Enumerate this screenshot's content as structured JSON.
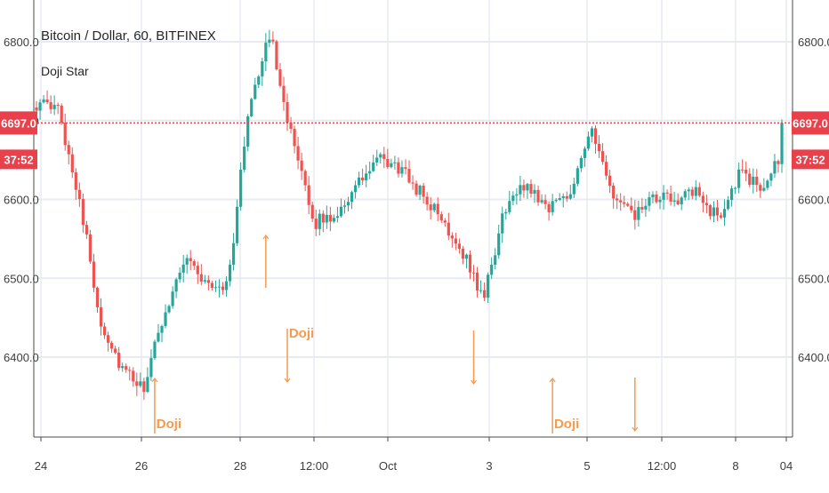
{
  "legend": {
    "title": "Bitcoin / Dollar, 60, BITFINEX",
    "indicator": "Doji Star"
  },
  "price_tag": {
    "value": "6697.0",
    "countdown": "37:52"
  },
  "colors": {
    "up": "#26a69a",
    "down": "#ef5350",
    "doji": "#f59a4e",
    "grid": "#e7ebf0",
    "axis": "#4a4a4a",
    "tag": "#e8414b"
  },
  "chart_data": {
    "type": "candlestick",
    "title": "Bitcoin / Dollar, 60, BITFINEX",
    "indicator": "Doji Star",
    "ylim": [
      6320,
      6840
    ],
    "y_ticks": [
      "6400.0",
      "6500.0",
      "6600.0",
      "6700.0",
      "6800.0"
    ],
    "x_ticks": [
      "24",
      "26",
      "28",
      "12:00",
      "Oct",
      "3",
      "5",
      "12:00",
      "8",
      "04"
    ],
    "last_price": 6697.0,
    "grid": "on",
    "legend": "top-left",
    "path": [
      [
        6710,
        6732
      ],
      [
        6700,
        6728
      ],
      [
        6560,
        6648
      ],
      [
        6420,
        6470
      ],
      [
        6370,
        6400
      ],
      [
        6345,
        6370
      ],
      [
        6440,
        6470
      ],
      [
        6520,
        6540
      ],
      [
        6460,
        6520
      ],
      [
        6480,
        6505
      ],
      [
        6690,
        6760
      ],
      [
        6800,
        6820
      ],
      [
        6650,
        6700
      ],
      [
        6480,
        6660
      ],
      [
        6550,
        6610
      ],
      [
        6600,
        6630
      ],
      [
        6640,
        6660
      ],
      [
        6630,
        6650
      ],
      [
        6600,
        6620
      ],
      [
        6560,
        6590
      ],
      [
        6520,
        6550
      ],
      [
        6455,
        6490
      ],
      [
        6560,
        6620
      ],
      [
        6610,
        6630
      ],
      [
        6580,
        6600
      ],
      [
        6595,
        6620
      ],
      [
        6680,
        6700
      ],
      [
        6600,
        6615
      ],
      [
        6570,
        6585
      ],
      [
        6590,
        6610
      ],
      [
        6590,
        6612
      ],
      [
        6600,
        6615
      ],
      [
        6560,
        6590
      ],
      [
        6600,
        6665
      ],
      [
        6610,
        6620
      ],
      [
        6640,
        6665
      ]
    ],
    "doji_arrows_up": [
      {
        "label": "Doji",
        "x_index": 33
      },
      {
        "label": "Doji",
        "x_index": 144
      },
      {
        "label": "",
        "x_index": 64
      }
    ],
    "doji_arrows_down": [
      {
        "label": "Doji",
        "x_index": 70
      },
      {
        "label": "",
        "x_index": 122
      },
      {
        "label": "",
        "x_index": 167
      }
    ]
  }
}
